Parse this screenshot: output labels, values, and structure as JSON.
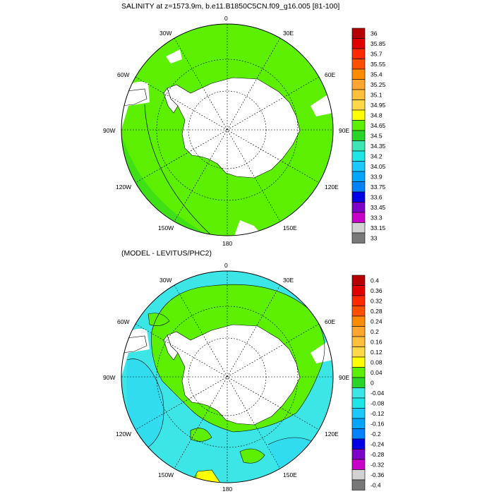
{
  "panels": [
    {
      "title": "SALINITY at z=1573.9m, b.e11.B1850C5CN.f09_g16.005 [81-100]",
      "lon_labels": {
        "top": "0",
        "top_right": "30E",
        "right_upper": "60E",
        "right": "90E",
        "right_lower": "120E",
        "bottom_right": "150E",
        "bottom": "180",
        "bottom_left": "150W",
        "left_lower": "120W",
        "left": "90W",
        "left_upper": "60W",
        "top_left": "30W"
      },
      "colorbar": {
        "labels": [
          "36",
          "35.85",
          "35.7",
          "35.55",
          "35.4",
          "35.25",
          "35.1",
          "34.95",
          "34.8",
          "34.65",
          "34.5",
          "34.35",
          "34.2",
          "34.05",
          "33.9",
          "33.75",
          "33.6",
          "33.45",
          "33.3",
          "33.15",
          "33"
        ],
        "colors": [
          "#b40000",
          "#e00000",
          "#ff2a00",
          "#ff5000",
          "#ff8c00",
          "#ffa530",
          "#ffbe3c",
          "#ffd84a",
          "#ffff00",
          "#5cf000",
          "#28d428",
          "#3ce6b4",
          "#1ee6e6",
          "#1ec8ff",
          "#00a5ff",
          "#0082ff",
          "#0000e6",
          "#7d00c8",
          "#c800c8",
          "#d2d2d2",
          "#787878"
        ]
      },
      "field_color": "#5cf000",
      "land_color": "#ffffff",
      "outer_band_color": "#28d428"
    },
    {
      "title": "(MODEL - LEVITUS/PHC2)",
      "lon_labels": {
        "top": "0",
        "top_right": "30E",
        "right_upper": "60E",
        "right": "90E",
        "right_lower": "120E",
        "bottom_right": "150E",
        "bottom": "180",
        "bottom_left": "150W",
        "left_lower": "120W",
        "left": "90W",
        "left_upper": "60W",
        "top_left": "30W"
      },
      "colorbar": {
        "labels": [
          "0.4",
          "0.36",
          "0.32",
          "0.28",
          "0.24",
          "0.2",
          "0.16",
          "0.12",
          "0.08",
          "0.04",
          "0",
          "-0.04",
          "-0.08",
          "-0.12",
          "-0.16",
          "-0.2",
          "-0.24",
          "-0.28",
          "-0.32",
          "-0.36",
          "-0.4"
        ],
        "colors": [
          "#b40000",
          "#e00000",
          "#ff2a00",
          "#ff5000",
          "#ff8c00",
          "#ffa530",
          "#ffbe3c",
          "#ffd84a",
          "#ffff00",
          "#5cf000",
          "#28d428",
          "#3ce6e6",
          "#1ee6e6",
          "#1ec8ff",
          "#00a5ff",
          "#0082ff",
          "#0000e6",
          "#7d00c8",
          "#c800c8",
          "#d2d2d2",
          "#787878"
        ]
      },
      "field_color": "#3ce6e6",
      "land_color": "#ffffff",
      "green_band_color": "#5cf000"
    }
  ]
}
